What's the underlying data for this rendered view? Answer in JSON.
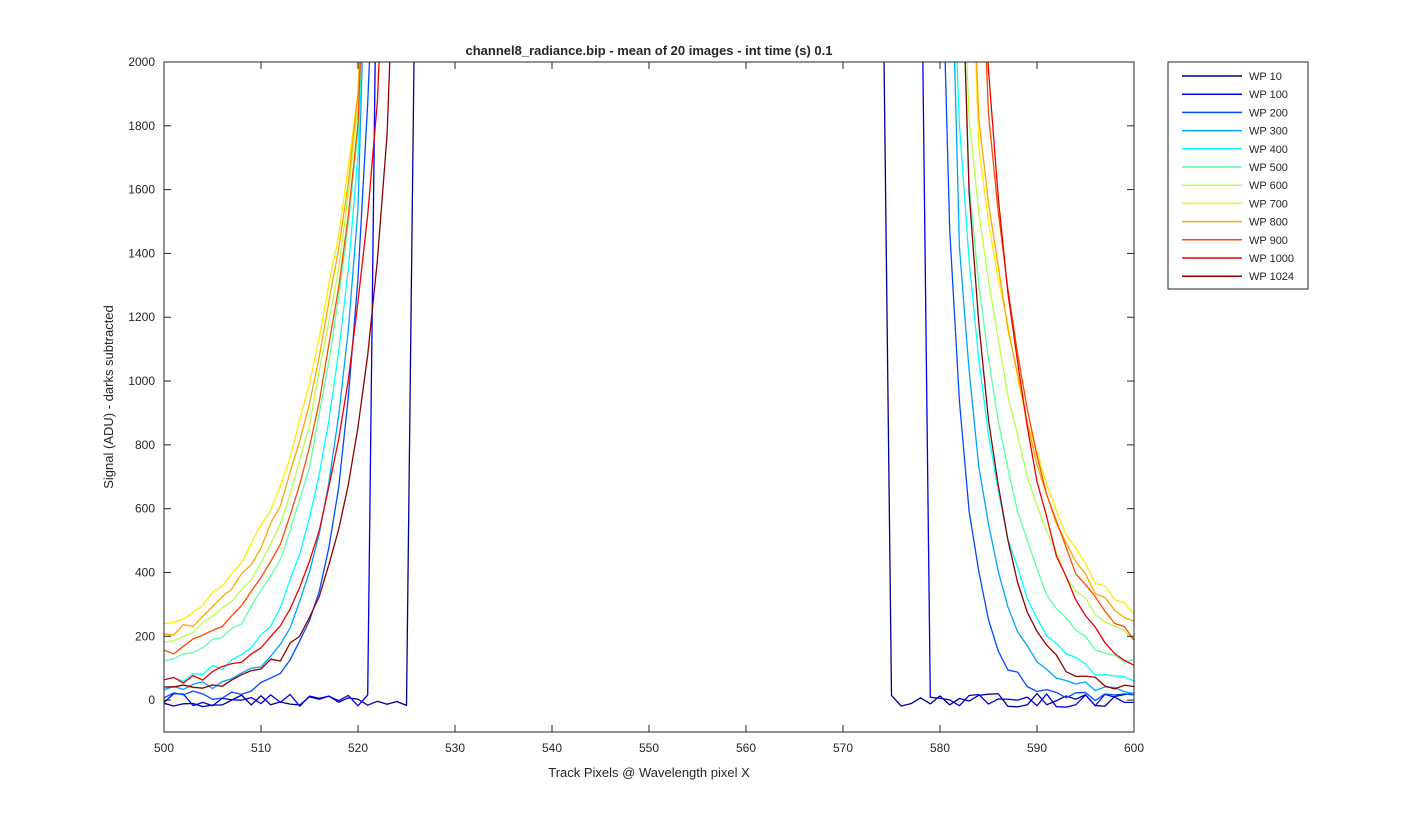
{
  "chart_data": {
    "type": "line",
    "title": "channel8_radiance.bip - mean of 20 images - int time (s) 0.1",
    "xlabel": "Track Pixels @ Wavelength pixel X",
    "ylabel": "Signal (ADU) - darks subtracted",
    "xlim": [
      500,
      600
    ],
    "ylim": [
      -100,
      2000
    ],
    "xticks": [
      500,
      510,
      520,
      530,
      540,
      550,
      560,
      570,
      580,
      590,
      600
    ],
    "yticks": [
      0,
      200,
      400,
      600,
      800,
      1000,
      1200,
      1400,
      1600,
      1800,
      2000
    ],
    "grid": false,
    "legend_position": "outside-top-right",
    "series": [
      {
        "name": "WP 10",
        "color": "#00008F",
        "base": 0,
        "noise": 22,
        "left_edge": 525.7,
        "right_edge": 574.3,
        "left_slope": 0,
        "right_slope": 0,
        "left_blend": 0,
        "right_blend": 0
      },
      {
        "name": "WP 100",
        "color": "#0000EA",
        "base": 0,
        "noise": 22,
        "left_edge": 521.6,
        "right_edge": 578.8,
        "left_slope": 0,
        "right_slope": 0,
        "left_blend": 0,
        "right_blend": 0
      },
      {
        "name": "WP 200",
        "color": "#0049FF",
        "base": 10,
        "noise": 16,
        "left_edge": 521.2,
        "right_edge": 580.3,
        "left_slope": 0.35,
        "right_slope": 0.45,
        "left_blend": 3.5,
        "right_blend": 3.5
      },
      {
        "name": "WP 300",
        "color": "#00A4FF",
        "base": 30,
        "noise": 14,
        "left_edge": 520.9,
        "right_edge": 581.0,
        "left_slope": 0.29,
        "right_slope": 0.34,
        "left_blend": 4,
        "right_blend": 4
      },
      {
        "name": "WP 400",
        "color": "#00FFFF",
        "base": 50,
        "noise": 14,
        "left_edge": 520.7,
        "right_edge": 581.6,
        "left_slope": 0.24,
        "right_slope": 0.27,
        "left_blend": 4,
        "right_blend": 4
      },
      {
        "name": "WP 500",
        "color": "#5BFFA4",
        "base": 90,
        "noise": 14,
        "left_edge": 520.6,
        "right_edge": 582.0,
        "left_slope": 0.2,
        "right_slope": 0.23,
        "left_blend": 4,
        "right_blend": 4
      },
      {
        "name": "WP 600",
        "color": "#B6FF49",
        "base": 130,
        "noise": 14,
        "left_edge": 520.5,
        "right_edge": 582.4,
        "left_slope": 0.18,
        "right_slope": 0.19,
        "left_blend": 4,
        "right_blend": 4
      },
      {
        "name": "WP 700",
        "color": "#FFED00",
        "base": 160,
        "noise": 14,
        "left_edge": 520.4,
        "right_edge": 583.0,
        "left_slope": 0.16,
        "right_slope": 0.17,
        "left_blend": 4,
        "right_blend": 4
      },
      {
        "name": "WP 800",
        "color": "#FFA400",
        "base": 140,
        "noise": 14,
        "left_edge": 520.4,
        "right_edge": 583.4,
        "left_slope": 0.17,
        "right_slope": 0.18,
        "left_blend": 4,
        "right_blend": 4
      },
      {
        "name": "WP 900",
        "color": "#FF4900",
        "base": 110,
        "noise": 14,
        "left_edge": 520.6,
        "right_edge": 584.5,
        "left_slope": 0.19,
        "right_slope": 0.2,
        "left_blend": 4,
        "right_blend": 4
      },
      {
        "name": "WP 1000",
        "color": "#ED0000",
        "base": 40,
        "noise": 16,
        "left_edge": 522.3,
        "right_edge": 584.9,
        "left_slope": 0.22,
        "right_slope": 0.22,
        "left_blend": 3,
        "right_blend": 3
      },
      {
        "name": "WP 1024",
        "color": "#8F0000",
        "base": 25,
        "noise": 16,
        "left_edge": 523.5,
        "right_edge": 582.2,
        "left_slope": 0.25,
        "right_slope": 0.3,
        "left_blend": 3,
        "right_blend": 3
      }
    ]
  }
}
